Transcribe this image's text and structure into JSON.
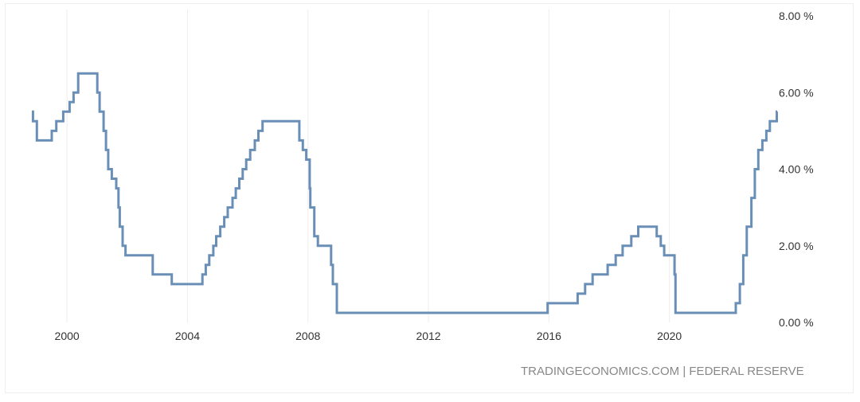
{
  "chart_data": {
    "type": "line",
    "x_type": "date",
    "y_unit": "%",
    "xlim": [
      "1998-11-01",
      "2023-07-31"
    ],
    "ylim": [
      0,
      8
    ],
    "grid": {
      "vertical": true,
      "horizontal": false
    },
    "line_color": "#6a8fb7",
    "x_ticks": [
      {
        "date": "2000-01-01",
        "label": "2000"
      },
      {
        "date": "2004-01-01",
        "label": "2004"
      },
      {
        "date": "2008-01-01",
        "label": "2008"
      },
      {
        "date": "2012-01-01",
        "label": "2012"
      },
      {
        "date": "2016-01-01",
        "label": "2016"
      },
      {
        "date": "2020-01-01",
        "label": "2020"
      }
    ],
    "y_ticks": [
      {
        "value": 0,
        "label": "0.00 %"
      },
      {
        "value": 2,
        "label": "2.00 %"
      },
      {
        "value": 4,
        "label": "4.00 %"
      },
      {
        "value": 6,
        "label": "6.00 %"
      },
      {
        "value": 8,
        "label": "8.00 %"
      }
    ],
    "series": [
      {
        "points": [
          [
            "1998-11-01",
            5.5
          ],
          [
            "1998-11-15",
            5.25
          ],
          [
            "1998-12-20",
            5.25
          ],
          [
            "1999-01-01",
            4.75
          ],
          [
            "1999-06-30",
            5.0
          ],
          [
            "1999-08-24",
            5.25
          ],
          [
            "1999-11-16",
            5.5
          ],
          [
            "2000-02-02",
            5.75
          ],
          [
            "2000-03-21",
            6.0
          ],
          [
            "2000-05-16",
            6.5
          ],
          [
            "2001-01-03",
            6.0
          ],
          [
            "2001-01-31",
            5.5
          ],
          [
            "2001-03-20",
            5.0
          ],
          [
            "2001-04-18",
            4.5
          ],
          [
            "2001-05-15",
            4.0
          ],
          [
            "2001-06-27",
            3.75
          ],
          [
            "2001-08-21",
            3.5
          ],
          [
            "2001-09-17",
            3.0
          ],
          [
            "2001-10-02",
            2.5
          ],
          [
            "2001-11-06",
            2.0
          ],
          [
            "2001-12-11",
            1.75
          ],
          [
            "2002-11-06",
            1.25
          ],
          [
            "2003-06-25",
            1.0
          ],
          [
            "2004-06-30",
            1.25
          ],
          [
            "2004-08-10",
            1.5
          ],
          [
            "2004-09-21",
            1.75
          ],
          [
            "2004-11-10",
            2.0
          ],
          [
            "2004-12-14",
            2.25
          ],
          [
            "2005-02-02",
            2.5
          ],
          [
            "2005-03-22",
            2.75
          ],
          [
            "2005-05-03",
            3.0
          ],
          [
            "2005-06-30",
            3.25
          ],
          [
            "2005-08-09",
            3.5
          ],
          [
            "2005-09-20",
            3.75
          ],
          [
            "2005-11-01",
            4.0
          ],
          [
            "2005-12-13",
            4.25
          ],
          [
            "2006-01-31",
            4.5
          ],
          [
            "2006-03-28",
            4.75
          ],
          [
            "2006-05-10",
            5.0
          ],
          [
            "2006-06-29",
            5.25
          ],
          [
            "2007-09-18",
            4.75
          ],
          [
            "2007-10-31",
            4.5
          ],
          [
            "2007-12-11",
            4.25
          ],
          [
            "2008-01-22",
            3.5
          ],
          [
            "2008-01-30",
            3.0
          ],
          [
            "2008-03-18",
            2.25
          ],
          [
            "2008-04-30",
            2.0
          ],
          [
            "2008-10-08",
            1.5
          ],
          [
            "2008-10-29",
            1.0
          ],
          [
            "2008-12-16",
            0.25
          ],
          [
            "2015-12-16",
            0.5
          ],
          [
            "2016-12-14",
            0.75
          ],
          [
            "2017-03-15",
            1.0
          ],
          [
            "2017-06-14",
            1.25
          ],
          [
            "2017-12-13",
            1.5
          ],
          [
            "2018-03-21",
            1.75
          ],
          [
            "2018-06-13",
            2.0
          ],
          [
            "2018-09-26",
            2.25
          ],
          [
            "2018-12-19",
            2.5
          ],
          [
            "2019-07-31",
            2.25
          ],
          [
            "2019-09-18",
            2.0
          ],
          [
            "2019-10-30",
            1.75
          ],
          [
            "2020-03-03",
            1.25
          ],
          [
            "2020-03-15",
            0.25
          ],
          [
            "2022-03-16",
            0.5
          ],
          [
            "2022-05-04",
            1.0
          ],
          [
            "2022-06-15",
            1.75
          ],
          [
            "2022-07-27",
            2.5
          ],
          [
            "2022-09-21",
            3.25
          ],
          [
            "2022-11-02",
            4.0
          ],
          [
            "2022-12-14",
            4.5
          ],
          [
            "2023-02-01",
            4.75
          ],
          [
            "2023-03-22",
            5.0
          ],
          [
            "2023-05-03",
            5.25
          ],
          [
            "2023-07-26",
            5.5
          ],
          [
            "2023-07-31",
            5.5
          ]
        ]
      }
    ]
  },
  "footer": {
    "source": "TRADINGECONOMICS.COM | FEDERAL RESERVE"
  }
}
